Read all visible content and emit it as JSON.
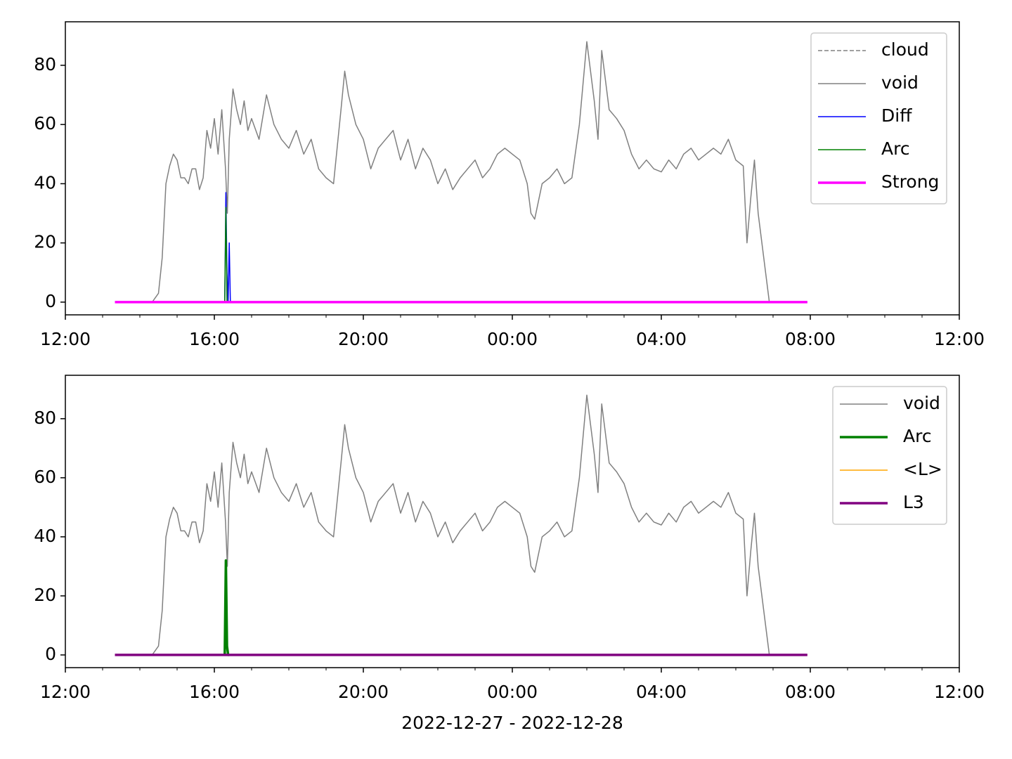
{
  "chart_data": [
    {
      "type": "line",
      "xlim": [
        0,
        24
      ],
      "xticks": [
        {
          "value": 0,
          "label": "12:00"
        },
        {
          "value": 4,
          "label": "16:00"
        },
        {
          "value": 8,
          "label": "20:00"
        },
        {
          "value": 12,
          "label": "00:00"
        },
        {
          "value": 16,
          "label": "04:00"
        },
        {
          "value": 20,
          "label": "08:00"
        },
        {
          "value": 24,
          "label": "12:00"
        }
      ],
      "xminorticks": [
        1,
        2,
        3,
        5,
        6,
        7,
        9,
        10,
        11,
        13,
        14,
        15,
        17,
        18,
        19,
        21,
        22,
        23
      ],
      "ylim": [
        -4.3,
        94.7
      ],
      "yticks": [
        0,
        20,
        40,
        60,
        80
      ],
      "legend": "upper right",
      "series": [
        {
          "name": "cloud",
          "color": "#808080",
          "width": 1.5,
          "dash": true,
          "x": [
            1.33,
            19.92
          ],
          "values": [
            0,
            0
          ]
        },
        {
          "name": "void",
          "color": "#808080",
          "width": 1.5,
          "x": [
            1.33,
            2.0,
            2.33,
            2.5,
            2.6,
            2.7,
            2.8,
            2.9,
            3.0,
            3.1,
            3.2,
            3.3,
            3.4,
            3.5,
            3.6,
            3.7,
            3.8,
            3.9,
            4.0,
            4.1,
            4.2,
            4.3,
            4.35,
            4.4,
            4.5,
            4.6,
            4.7,
            4.8,
            4.9,
            5.0,
            5.2,
            5.4,
            5.6,
            5.8,
            6.0,
            6.2,
            6.4,
            6.6,
            6.8,
            7.0,
            7.2,
            7.4,
            7.5,
            7.6,
            7.8,
            8.0,
            8.2,
            8.4,
            8.6,
            8.8,
            9.0,
            9.2,
            9.4,
            9.6,
            9.8,
            10.0,
            10.2,
            10.4,
            10.6,
            10.8,
            11.0,
            11.2,
            11.4,
            11.6,
            11.8,
            12.0,
            12.2,
            12.4,
            12.5,
            12.6,
            12.8,
            13.0,
            13.2,
            13.4,
            13.6,
            13.8,
            14.0,
            14.2,
            14.3,
            14.4,
            14.6,
            14.8,
            15.0,
            15.2,
            15.4,
            15.6,
            15.8,
            16.0,
            16.2,
            16.4,
            16.6,
            16.8,
            17.0,
            17.2,
            17.4,
            17.6,
            17.8,
            18.0,
            18.2,
            18.3,
            18.4,
            18.5,
            18.6,
            18.8,
            18.9,
            19.92
          ],
          "values": [
            0,
            0,
            0,
            3,
            15,
            40,
            46,
            50,
            48,
            42,
            42,
            40,
            45,
            45,
            38,
            42,
            58,
            52,
            62,
            50,
            65,
            45,
            30,
            55,
            72,
            65,
            60,
            68,
            58,
            62,
            55,
            70,
            60,
            55,
            52,
            58,
            50,
            55,
            45,
            42,
            40,
            65,
            78,
            70,
            60,
            55,
            45,
            52,
            55,
            58,
            48,
            55,
            45,
            52,
            48,
            40,
            45,
            38,
            42,
            45,
            48,
            42,
            45,
            50,
            52,
            50,
            48,
            40,
            30,
            28,
            40,
            42,
            45,
            40,
            42,
            60,
            88,
            68,
            55,
            85,
            65,
            62,
            58,
            50,
            45,
            48,
            45,
            44,
            48,
            45,
            50,
            52,
            48,
            50,
            52,
            50,
            55,
            48,
            46,
            20,
            35,
            48,
            30,
            10,
            0,
            0
          ]
        },
        {
          "name": "Diff",
          "color": "#0000ff",
          "width": 1.5,
          "x": [
            4.28,
            4.31,
            4.34,
            4.37,
            4.4,
            4.43
          ],
          "values": [
            0,
            37,
            10,
            0,
            20,
            0
          ]
        },
        {
          "name": "Arc",
          "color": "#008000",
          "width": 1.5,
          "x": [
            4.28,
            4.31,
            4.34,
            4.37
          ],
          "values": [
            0,
            32,
            0,
            0
          ]
        },
        {
          "name": "Strong",
          "color": "#ff00ff",
          "width": 3.5,
          "x": [
            1.33,
            19.92
          ],
          "values": [
            0,
            0
          ]
        }
      ]
    },
    {
      "type": "line",
      "xlim": [
        0,
        24
      ],
      "xlabel": "2022-12-27 - 2022-12-28",
      "xticks": [
        {
          "value": 0,
          "label": "12:00"
        },
        {
          "value": 4,
          "label": "16:00"
        },
        {
          "value": 8,
          "label": "20:00"
        },
        {
          "value": 12,
          "label": "00:00"
        },
        {
          "value": 16,
          "label": "04:00"
        },
        {
          "value": 20,
          "label": "08:00"
        },
        {
          "value": 24,
          "label": "12:00"
        }
      ],
      "xminorticks": [
        1,
        2,
        3,
        5,
        6,
        7,
        9,
        10,
        11,
        13,
        14,
        15,
        17,
        18,
        19,
        21,
        22,
        23
      ],
      "ylim": [
        -4.3,
        94.7
      ],
      "yticks": [
        0,
        20,
        40,
        60,
        80
      ],
      "legend": "upper right",
      "series": [
        {
          "name": "void",
          "color": "#808080",
          "width": 1.5,
          "x": [
            1.33,
            2.0,
            2.33,
            2.5,
            2.6,
            2.7,
            2.8,
            2.9,
            3.0,
            3.1,
            3.2,
            3.3,
            3.4,
            3.5,
            3.6,
            3.7,
            3.8,
            3.9,
            4.0,
            4.1,
            4.2,
            4.3,
            4.35,
            4.4,
            4.5,
            4.6,
            4.7,
            4.8,
            4.9,
            5.0,
            5.2,
            5.4,
            5.6,
            5.8,
            6.0,
            6.2,
            6.4,
            6.6,
            6.8,
            7.0,
            7.2,
            7.4,
            7.5,
            7.6,
            7.8,
            8.0,
            8.2,
            8.4,
            8.6,
            8.8,
            9.0,
            9.2,
            9.4,
            9.6,
            9.8,
            10.0,
            10.2,
            10.4,
            10.6,
            10.8,
            11.0,
            11.2,
            11.4,
            11.6,
            11.8,
            12.0,
            12.2,
            12.4,
            12.5,
            12.6,
            12.8,
            13.0,
            13.2,
            13.4,
            13.6,
            13.8,
            14.0,
            14.2,
            14.3,
            14.4,
            14.6,
            14.8,
            15.0,
            15.2,
            15.4,
            15.6,
            15.8,
            16.0,
            16.2,
            16.4,
            16.6,
            16.8,
            17.0,
            17.2,
            17.4,
            17.6,
            17.8,
            18.0,
            18.2,
            18.3,
            18.4,
            18.5,
            18.6,
            18.8,
            18.9,
            19.92
          ],
          "values": [
            0,
            0,
            0,
            3,
            15,
            40,
            46,
            50,
            48,
            42,
            42,
            40,
            45,
            45,
            38,
            42,
            58,
            52,
            62,
            50,
            65,
            45,
            30,
            55,
            72,
            65,
            60,
            68,
            58,
            62,
            55,
            70,
            60,
            55,
            52,
            58,
            50,
            55,
            45,
            42,
            40,
            65,
            78,
            70,
            60,
            55,
            45,
            52,
            55,
            58,
            48,
            55,
            45,
            52,
            48,
            40,
            45,
            38,
            42,
            45,
            48,
            42,
            45,
            50,
            52,
            50,
            48,
            40,
            30,
            28,
            40,
            42,
            45,
            40,
            42,
            60,
            88,
            68,
            55,
            85,
            65,
            62,
            58,
            50,
            45,
            48,
            45,
            44,
            48,
            45,
            50,
            52,
            48,
            50,
            52,
            50,
            55,
            48,
            46,
            20,
            35,
            48,
            30,
            10,
            0,
            0
          ]
        },
        {
          "name": "Arc",
          "color": "#008000",
          "width": 3.5,
          "x": [
            4.28,
            4.31,
            4.34,
            4.37,
            4.4
          ],
          "values": [
            0,
            32,
            3,
            0,
            0
          ]
        },
        {
          "name": "<L>",
          "color": "#ffa500",
          "width": 1.5,
          "x": [
            1.33,
            19.92
          ],
          "values": [
            0,
            0
          ]
        },
        {
          "name": "L3",
          "color": "#800080",
          "width": 3.5,
          "x": [
            1.33,
            19.92
          ],
          "values": [
            0,
            0
          ]
        }
      ]
    }
  ]
}
